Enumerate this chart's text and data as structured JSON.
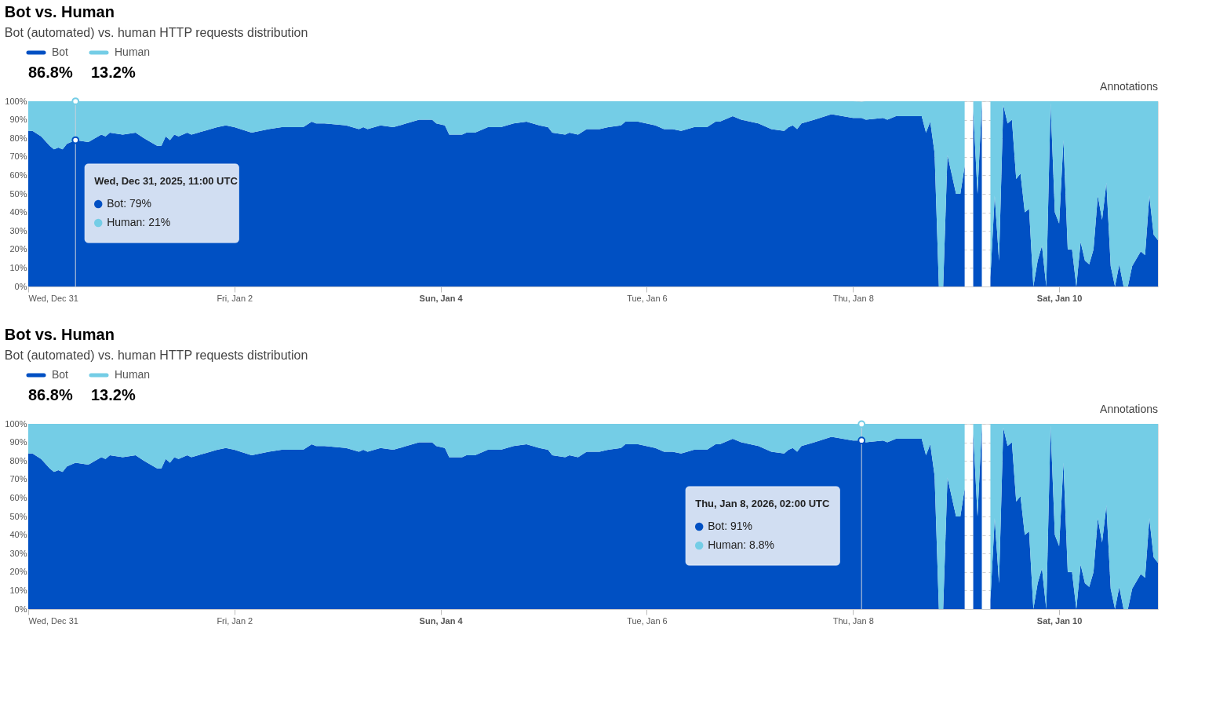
{
  "chart_data": [
    {
      "type": "area",
      "title": "Bot vs. Human",
      "subtitle": "Bot (automated) vs. human HTTP requests distribution",
      "stacked": true,
      "legend": "top left",
      "grid": "y",
      "x": [
        "2025-12-31T00:00",
        "2025-12-31T01:00",
        "2025-12-31T03:00",
        "2025-12-31T05:00",
        "2025-12-31T06:00",
        "2025-12-31T07:00",
        "2025-12-31T08:00",
        "2025-12-31T09:00",
        "2025-12-31T11:00",
        "2025-12-31T14:00",
        "2025-12-31T17:00",
        "2025-12-31T18:00",
        "2025-12-31T19:00",
        "2025-12-31T22:00",
        "2026-01-01T01:00",
        "2026-01-01T03:00",
        "2026-01-01T06:00",
        "2026-01-01T07:00",
        "2026-01-01T08:00",
        "2026-01-01T09:00",
        "2026-01-01T10:00",
        "2026-01-01T11:00",
        "2026-01-01T13:00",
        "2026-01-01T14:00",
        "2026-01-01T17:00",
        "2026-01-01T20:00",
        "2026-01-01T22:00",
        "2026-01-02T00:00",
        "2026-01-02T04:00",
        "2026-01-02T08:00",
        "2026-01-02T11:00",
        "2026-01-02T16:00",
        "2026-01-02T18:00",
        "2026-01-02T19:00",
        "2026-01-02T21:00",
        "2026-01-03T02:00",
        "2026-01-03T05:00",
        "2026-01-03T06:00",
        "2026-01-03T07:00",
        "2026-01-03T10:00",
        "2026-01-03T13:00",
        "2026-01-03T16:00",
        "2026-01-03T19:00",
        "2026-01-03T22:00",
        "2026-01-03T23:00",
        "2026-01-04T01:00",
        "2026-01-04T02:00",
        "2026-01-04T03:00",
        "2026-01-04T05:00",
        "2026-01-04T06:00",
        "2026-01-04T08:00",
        "2026-01-04T11:00",
        "2026-01-04T14:00",
        "2026-01-04T17:00",
        "2026-01-04T20:00",
        "2026-01-04T23:00",
        "2026-01-05T01:00",
        "2026-01-05T02:00",
        "2026-01-05T05:00",
        "2026-01-05T06:00",
        "2026-01-05T08:00",
        "2026-01-05T10:00",
        "2026-01-05T13:00",
        "2026-01-05T15:00",
        "2026-01-05T18:00",
        "2026-01-05T19:00",
        "2026-01-05T22:00",
        "2026-01-06T02:00",
        "2026-01-06T04:00",
        "2026-01-06T06:00",
        "2026-01-06T08:00",
        "2026-01-06T11:00",
        "2026-01-06T14:00",
        "2026-01-06T16:00",
        "2026-01-06T17:00",
        "2026-01-06T20:00",
        "2026-01-06T22:00",
        "2026-01-07T02:00",
        "2026-01-07T05:00",
        "2026-01-07T08:00",
        "2026-01-07T09:00",
        "2026-01-07T10:00",
        "2026-01-07T11:00",
        "2026-01-07T12:00",
        "2026-01-07T15:00",
        "2026-01-07T19:00",
        "2026-01-08T00:00",
        "2026-01-08T02:00",
        "2026-01-08T03:00",
        "2026-01-08T07:00",
        "2026-01-08T08:00",
        "2026-01-08T10:00",
        "2026-01-08T14:00",
        "2026-01-08T16:00",
        "2026-01-08T17:00",
        "2026-01-08T18:00",
        "2026-01-08T19:00",
        "2026-01-08T20:00",
        "2026-01-08T21:00",
        "2026-01-08T22:00",
        "2026-01-09T00:00",
        "2026-01-09T01:00",
        "2026-01-09T02:00",
        "2026-01-09T03:00",
        "2026-01-09T04:00",
        "2026-01-09T05:00",
        "2026-01-09T06:00",
        "2026-01-09T07:00",
        "2026-01-09T08:00",
        "2026-01-09T09:00",
        "2026-01-09T10:00",
        "2026-01-09T11:00",
        "2026-01-09T12:00",
        "2026-01-09T13:00",
        "2026-01-09T14:00",
        "2026-01-09T15:00",
        "2026-01-09T16:00",
        "2026-01-09T17:00",
        "2026-01-09T18:00",
        "2026-01-09T19:00",
        "2026-01-09T20:00",
        "2026-01-09T21:00",
        "2026-01-09T22:00",
        "2026-01-09T23:00",
        "2026-01-10T00:00",
        "2026-01-10T01:00",
        "2026-01-10T02:00",
        "2026-01-10T03:00",
        "2026-01-10T04:00",
        "2026-01-10T05:00",
        "2026-01-10T06:00",
        "2026-01-10T07:00",
        "2026-01-10T08:00",
        "2026-01-10T09:00",
        "2026-01-10T10:00",
        "2026-01-10T11:00",
        "2026-01-10T12:00",
        "2026-01-10T13:00",
        "2026-01-10T14:00",
        "2026-01-10T15:00",
        "2026-01-10T16:00",
        "2026-01-10T17:00",
        "2026-01-10T19:00",
        "2026-01-10T20:00",
        "2026-01-10T21:00",
        "2026-01-10T22:00",
        "2026-01-10T23:00"
      ],
      "series": [
        {
          "name": "Bot",
          "color": "#0050c3",
          "values": [
            84,
            84,
            81,
            76,
            74,
            75,
            74,
            77,
            79,
            78,
            82,
            81,
            83,
            82,
            83,
            80,
            76,
            76,
            81,
            79,
            82,
            81,
            83,
            82,
            84,
            86,
            87,
            86,
            83,
            85,
            86,
            86,
            89,
            88,
            88,
            87,
            85,
            86,
            85,
            87,
            86,
            88,
            90,
            90,
            88,
            87,
            82,
            82,
            82,
            83,
            83,
            86,
            86,
            88,
            89,
            87,
            86,
            83,
            82,
            83,
            82,
            85,
            85,
            86,
            87,
            89,
            89,
            87,
            85,
            85,
            84,
            86,
            86,
            89,
            89,
            92,
            90,
            88,
            85,
            84,
            86,
            87,
            85,
            88,
            90,
            93,
            91,
            91,
            90,
            91,
            90,
            92,
            92,
            92,
            83,
            89,
            72,
            0,
            0,
            71,
            50,
            50,
            65,
            null,
            95,
            50,
            99,
            null,
            5,
            49,
            14,
            98,
            88,
            90,
            58,
            61,
            40,
            42,
            0,
            14,
            22,
            0,
            99,
            40,
            34,
            79,
            20,
            20,
            0,
            24,
            14,
            12,
            20,
            49,
            36,
            56,
            11,
            0,
            12,
            0,
            0,
            11,
            19,
            17,
            49,
            28,
            25
          ]
        },
        {
          "name": "Human",
          "color": "#74cde6",
          "values": [
            16,
            16,
            19,
            24,
            26,
            25,
            26,
            23,
            21,
            22,
            18,
            19,
            17,
            18,
            17,
            20,
            24,
            24,
            19,
            21,
            18,
            19,
            17,
            18,
            16,
            14,
            13,
            14,
            17,
            15,
            14,
            14,
            11,
            12,
            12,
            13,
            15,
            14,
            15,
            13,
            14,
            12,
            10,
            10,
            12,
            13,
            18,
            18,
            18,
            17,
            17,
            14,
            14,
            12,
            11,
            13,
            14,
            17,
            18,
            17,
            18,
            15,
            15,
            14,
            13,
            11,
            11,
            13,
            15,
            15,
            16,
            14,
            14,
            11,
            11,
            8,
            10,
            12,
            15,
            16,
            14,
            13,
            15,
            12,
            10,
            7,
            9,
            8.8,
            10,
            9,
            10,
            8,
            8,
            8,
            17,
            11,
            28,
            100,
            100,
            29,
            50,
            50,
            35,
            null,
            5,
            50,
            1,
            null,
            95,
            51,
            86,
            2,
            12,
            10,
            42,
            39,
            60,
            58,
            100,
            86,
            78,
            100,
            1,
            60,
            66,
            21,
            80,
            80,
            100,
            76,
            86,
            88,
            80,
            51,
            64,
            44,
            89,
            100,
            88,
            100,
            100,
            89,
            81,
            83,
            51,
            72,
            75
          ]
        }
      ],
      "xlim": [
        "2025-12-31T00:00",
        "2026-01-10T23:00"
      ],
      "xticks": [
        {
          "value": "2025-12-31",
          "label": "Wed, Dec 31"
        },
        {
          "value": "2026-01-02",
          "label": "Fri, Jan 2"
        },
        {
          "value": "2026-01-04",
          "label": "Sun, Jan 4"
        },
        {
          "value": "2026-01-06",
          "label": "Tue, Jan 6"
        },
        {
          "value": "2026-01-08",
          "label": "Thu, Jan 8"
        },
        {
          "value": "2026-01-10",
          "label": "Sat, Jan 10"
        }
      ],
      "ylim": [
        0,
        100
      ],
      "yticks": [
        {
          "value": 0,
          "label": "0%"
        },
        {
          "value": 10,
          "label": "10%"
        },
        {
          "value": 20,
          "label": "20%"
        },
        {
          "value": 30,
          "label": "30%"
        },
        {
          "value": 40,
          "label": "40%"
        },
        {
          "value": 50,
          "label": "50%"
        },
        {
          "value": 60,
          "label": "60%"
        },
        {
          "value": 70,
          "label": "70%"
        },
        {
          "value": 80,
          "label": "80%"
        },
        {
          "value": 90,
          "label": "90%"
        },
        {
          "value": 100,
          "label": "100%"
        }
      ],
      "ref_lines": [
        {
          "axis": "x",
          "value": "2025-12-31T11:00",
          "color": "#c8d0dc"
        }
      ],
      "annotations": [
        "86.8%",
        "13.2%",
        "Annotations",
        "Wed, Dec 31, 2025, 11:00 UTC",
        "Bot: 79%",
        "Human: 21%"
      ]
    },
    {
      "type": "area",
      "title": "Bot vs. Human",
      "subtitle": "Bot (automated) vs. human HTTP requests distribution",
      "stacked": true,
      "legend": "top left",
      "grid": "y",
      "x": [
        "2025-12-31T00:00",
        "2025-12-31T01:00",
        "2025-12-31T03:00",
        "2025-12-31T05:00",
        "2025-12-31T06:00",
        "2025-12-31T07:00",
        "2025-12-31T08:00",
        "2025-12-31T09:00",
        "2025-12-31T11:00",
        "2025-12-31T14:00",
        "2025-12-31T17:00",
        "2025-12-31T18:00",
        "2025-12-31T19:00",
        "2025-12-31T22:00",
        "2026-01-01T01:00",
        "2026-01-01T03:00",
        "2026-01-01T06:00",
        "2026-01-01T07:00",
        "2026-01-01T08:00",
        "2026-01-01T09:00",
        "2026-01-01T10:00",
        "2026-01-01T11:00",
        "2026-01-01T13:00",
        "2026-01-01T14:00",
        "2026-01-01T17:00",
        "2026-01-01T20:00",
        "2026-01-01T22:00",
        "2026-01-02T00:00",
        "2026-01-02T04:00",
        "2026-01-02T08:00",
        "2026-01-02T11:00",
        "2026-01-02T16:00",
        "2026-01-02T18:00",
        "2026-01-02T19:00",
        "2026-01-02T21:00",
        "2026-01-03T02:00",
        "2026-01-03T05:00",
        "2026-01-03T06:00",
        "2026-01-03T07:00",
        "2026-01-03T10:00",
        "2026-01-03T13:00",
        "2026-01-03T16:00",
        "2026-01-03T19:00",
        "2026-01-03T22:00",
        "2026-01-03T23:00",
        "2026-01-04T01:00",
        "2026-01-04T02:00",
        "2026-01-04T03:00",
        "2026-01-04T05:00",
        "2026-01-04T06:00",
        "2026-01-04T08:00",
        "2026-01-04T11:00",
        "2026-01-04T14:00",
        "2026-01-04T17:00",
        "2026-01-04T20:00",
        "2026-01-04T23:00",
        "2026-01-05T01:00",
        "2026-01-05T02:00",
        "2026-01-05T05:00",
        "2026-01-05T06:00",
        "2026-01-05T08:00",
        "2026-01-05T10:00",
        "2026-01-05T13:00",
        "2026-01-05T15:00",
        "2026-01-05T18:00",
        "2026-01-05T19:00",
        "2026-01-05T22:00",
        "2026-01-06T02:00",
        "2026-01-06T04:00",
        "2026-01-06T06:00",
        "2026-01-06T08:00",
        "2026-01-06T11:00",
        "2026-01-06T14:00",
        "2026-01-06T16:00",
        "2026-01-06T17:00",
        "2026-01-06T20:00",
        "2026-01-06T22:00",
        "2026-01-07T02:00",
        "2026-01-07T05:00",
        "2026-01-07T08:00",
        "2026-01-07T09:00",
        "2026-01-07T10:00",
        "2026-01-07T11:00",
        "2026-01-07T12:00",
        "2026-01-07T15:00",
        "2026-01-07T19:00",
        "2026-01-08T00:00",
        "2026-01-08T02:00",
        "2026-01-08T03:00",
        "2026-01-08T07:00",
        "2026-01-08T08:00",
        "2026-01-08T10:00",
        "2026-01-08T14:00",
        "2026-01-08T16:00",
        "2026-01-08T17:00",
        "2026-01-08T18:00",
        "2026-01-08T19:00",
        "2026-01-08T20:00",
        "2026-01-08T21:00",
        "2026-01-08T22:00",
        "2026-01-09T00:00",
        "2026-01-09T01:00",
        "2026-01-09T02:00",
        "2026-01-09T03:00",
        "2026-01-09T04:00",
        "2026-01-09T05:00",
        "2026-01-09T06:00",
        "2026-01-09T07:00",
        "2026-01-09T08:00",
        "2026-01-09T09:00",
        "2026-01-09T10:00",
        "2026-01-09T11:00",
        "2026-01-09T12:00",
        "2026-01-09T13:00",
        "2026-01-09T14:00",
        "2026-01-09T15:00",
        "2026-01-09T16:00",
        "2026-01-09T17:00",
        "2026-01-09T18:00",
        "2026-01-09T19:00",
        "2026-01-09T20:00",
        "2026-01-09T21:00",
        "2026-01-09T22:00",
        "2026-01-09T23:00",
        "2026-01-10T00:00",
        "2026-01-10T01:00",
        "2026-01-10T02:00",
        "2026-01-10T03:00",
        "2026-01-10T04:00",
        "2026-01-10T05:00",
        "2026-01-10T06:00",
        "2026-01-10T07:00",
        "2026-01-10T08:00",
        "2026-01-10T09:00",
        "2026-01-10T10:00",
        "2026-01-10T11:00",
        "2026-01-10T12:00",
        "2026-01-10T13:00",
        "2026-01-10T14:00",
        "2026-01-10T15:00",
        "2026-01-10T16:00",
        "2026-01-10T17:00",
        "2026-01-10T19:00",
        "2026-01-10T20:00",
        "2026-01-10T21:00",
        "2026-01-10T22:00",
        "2026-01-10T23:00"
      ],
      "series": [
        {
          "name": "Bot",
          "color": "#0050c3",
          "values": [
            84,
            84,
            81,
            76,
            74,
            75,
            74,
            77,
            79,
            78,
            82,
            81,
            83,
            82,
            83,
            80,
            76,
            76,
            81,
            79,
            82,
            81,
            83,
            82,
            84,
            86,
            87,
            86,
            83,
            85,
            86,
            86,
            89,
            88,
            88,
            87,
            85,
            86,
            85,
            87,
            86,
            88,
            90,
            90,
            88,
            87,
            82,
            82,
            82,
            83,
            83,
            86,
            86,
            88,
            89,
            87,
            86,
            83,
            82,
            83,
            82,
            85,
            85,
            86,
            87,
            89,
            89,
            87,
            85,
            85,
            84,
            86,
            86,
            89,
            89,
            92,
            90,
            88,
            85,
            84,
            86,
            87,
            85,
            88,
            90,
            93,
            91,
            91,
            90,
            91,
            90,
            92,
            92,
            92,
            83,
            89,
            72,
            0,
            0,
            71,
            50,
            50,
            65,
            null,
            95,
            50,
            99,
            null,
            5,
            49,
            14,
            98,
            88,
            90,
            58,
            61,
            40,
            42,
            0,
            14,
            22,
            0,
            99,
            40,
            34,
            79,
            20,
            20,
            0,
            24,
            14,
            12,
            20,
            49,
            36,
            56,
            11,
            0,
            12,
            0,
            0,
            11,
            19,
            17,
            49,
            28,
            25
          ]
        },
        {
          "name": "Human",
          "color": "#74cde6",
          "values": [
            16,
            16,
            19,
            24,
            26,
            25,
            26,
            23,
            21,
            22,
            18,
            19,
            17,
            18,
            17,
            20,
            24,
            24,
            19,
            21,
            18,
            19,
            17,
            18,
            16,
            14,
            13,
            14,
            17,
            15,
            14,
            14,
            11,
            12,
            12,
            13,
            15,
            14,
            15,
            13,
            14,
            12,
            10,
            10,
            12,
            13,
            18,
            18,
            18,
            17,
            17,
            14,
            14,
            12,
            11,
            13,
            14,
            17,
            18,
            17,
            18,
            15,
            15,
            14,
            13,
            11,
            11,
            13,
            15,
            15,
            16,
            14,
            14,
            11,
            11,
            8,
            10,
            12,
            15,
            16,
            14,
            13,
            15,
            12,
            10,
            7,
            9,
            8.8,
            10,
            9,
            10,
            8,
            8,
            8,
            17,
            11,
            28,
            100,
            100,
            29,
            50,
            50,
            35,
            null,
            5,
            50,
            1,
            null,
            95,
            51,
            86,
            2,
            12,
            10,
            42,
            39,
            60,
            58,
            100,
            86,
            78,
            100,
            1,
            60,
            66,
            21,
            80,
            80,
            100,
            76,
            86,
            88,
            80,
            51,
            64,
            44,
            89,
            100,
            88,
            100,
            100,
            89,
            81,
            83,
            51,
            72,
            75
          ]
        }
      ],
      "xlim": [
        "2025-12-31T00:00",
        "2026-01-10T23:00"
      ],
      "xticks": [
        {
          "value": "2025-12-31",
          "label": "Wed, Dec 31"
        },
        {
          "value": "2026-01-02",
          "label": "Fri, Jan 2"
        },
        {
          "value": "2026-01-04",
          "label": "Sun, Jan 4"
        },
        {
          "value": "2026-01-06",
          "label": "Tue, Jan 6"
        },
        {
          "value": "2026-01-08",
          "label": "Thu, Jan 8"
        },
        {
          "value": "2026-01-10",
          "label": "Sat, Jan 10"
        }
      ],
      "ylim": [
        0,
        100
      ],
      "yticks": [
        {
          "value": 0,
          "label": "0%"
        },
        {
          "value": 10,
          "label": "10%"
        },
        {
          "value": 20,
          "label": "20%"
        },
        {
          "value": 30,
          "label": "30%"
        },
        {
          "value": 40,
          "label": "40%"
        },
        {
          "value": 50,
          "label": "50%"
        },
        {
          "value": 60,
          "label": "60%"
        },
        {
          "value": 70,
          "label": "70%"
        },
        {
          "value": 80,
          "label": "80%"
        },
        {
          "value": 90,
          "label": "90%"
        },
        {
          "value": 100,
          "label": "100%"
        }
      ],
      "ref_lines": [
        {
          "axis": "x",
          "value": "2026-01-08T02:00",
          "color": "#c8d0dc"
        }
      ],
      "annotations": [
        "86.8%",
        "13.2%",
        "Annotations",
        "Thu, Jan 8, 2026, 02:00 UTC",
        "Bot: 91%",
        "Human: 8.8%"
      ]
    }
  ]
}
